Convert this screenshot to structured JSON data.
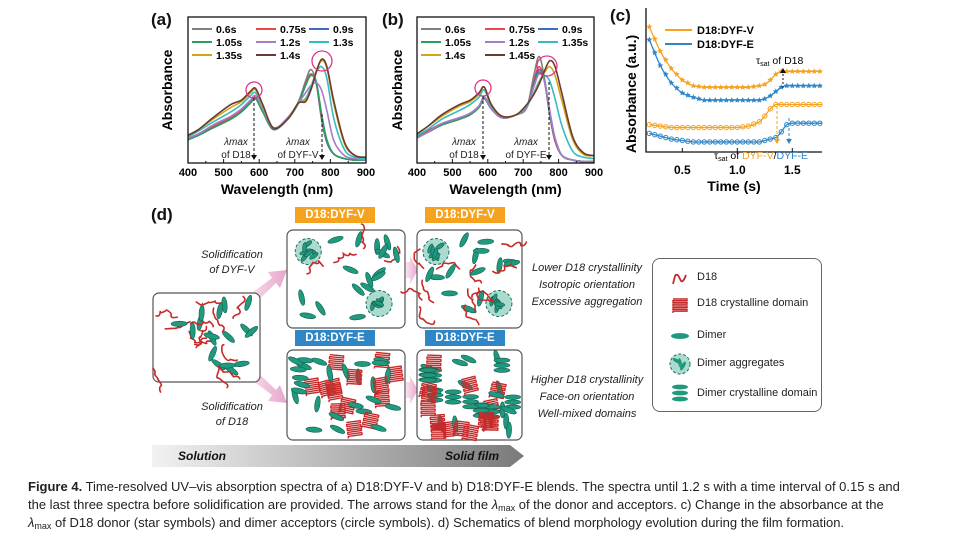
{
  "panels": {
    "a": "(a)",
    "b": "(b)",
    "c": "(c)",
    "d": "(d)"
  },
  "colors": {
    "orange": "#f5a21f",
    "blue": "#2f86c6",
    "teal": "#1f9a7e",
    "red": "#c62a2a",
    "pink": "#e0338a"
  },
  "chart_data": [
    {
      "type": "line",
      "panel": "a",
      "xlabel": "Wavelength (nm)",
      "ylabel": "Absorbance",
      "xlim": [
        400,
        900
      ],
      "ylim": [
        0,
        1
      ],
      "xticks": [
        "400",
        "500",
        "600",
        "700",
        "800",
        "900"
      ],
      "x": [
        400,
        430,
        470,
        520,
        550,
        575,
        590,
        610,
        640,
        680,
        710,
        730,
        745,
        760,
        775,
        790,
        810,
        840,
        870,
        900
      ],
      "series": [
        {
          "name": "0.6s",
          "color": "#808080",
          "values": [
            0.17,
            0.2,
            0.25,
            0.31,
            0.36,
            0.42,
            0.45,
            0.36,
            0.23,
            0.31,
            0.42,
            0.56,
            0.64,
            0.55,
            0.3,
            0.14,
            0.06,
            0.03,
            0.02,
            0.02
          ]
        },
        {
          "name": "0.75s",
          "color": "#e8474b",
          "values": [
            0.17,
            0.2,
            0.25,
            0.31,
            0.36,
            0.42,
            0.45,
            0.36,
            0.23,
            0.31,
            0.41,
            0.54,
            0.61,
            0.55,
            0.32,
            0.15,
            0.06,
            0.03,
            0.02,
            0.02
          ]
        },
        {
          "name": "0.9s",
          "color": "#3a6fc0",
          "values": [
            0.16,
            0.19,
            0.24,
            0.3,
            0.35,
            0.41,
            0.44,
            0.35,
            0.23,
            0.3,
            0.41,
            0.53,
            0.6,
            0.55,
            0.33,
            0.15,
            0.06,
            0.03,
            0.02,
            0.02
          ]
        },
        {
          "name": "1.05s",
          "color": "#2e9e5e",
          "values": [
            0.16,
            0.19,
            0.24,
            0.3,
            0.35,
            0.41,
            0.44,
            0.35,
            0.24,
            0.3,
            0.41,
            0.53,
            0.6,
            0.56,
            0.34,
            0.16,
            0.06,
            0.03,
            0.02,
            0.02
          ]
        },
        {
          "name": "1.2s",
          "color": "#a77bc7",
          "values": [
            0.17,
            0.2,
            0.26,
            0.32,
            0.37,
            0.43,
            0.46,
            0.37,
            0.24,
            0.31,
            0.41,
            0.48,
            0.53,
            0.55,
            0.5,
            0.36,
            0.15,
            0.05,
            0.03,
            0.02
          ]
        },
        {
          "name": "1.3s",
          "color": "#35bcc0",
          "values": [
            0.18,
            0.22,
            0.28,
            0.35,
            0.4,
            0.46,
            0.48,
            0.38,
            0.24,
            0.3,
            0.41,
            0.44,
            0.52,
            0.62,
            0.66,
            0.58,
            0.3,
            0.09,
            0.04,
            0.03
          ]
        },
        {
          "name": "1.35s",
          "color": "#d3a21a",
          "values": [
            0.19,
            0.23,
            0.3,
            0.38,
            0.42,
            0.48,
            0.5,
            0.39,
            0.24,
            0.3,
            0.41,
            0.43,
            0.5,
            0.63,
            0.7,
            0.65,
            0.4,
            0.13,
            0.05,
            0.04
          ]
        },
        {
          "name": "1.4s",
          "color": "#6b3b2f",
          "values": [
            0.19,
            0.23,
            0.31,
            0.4,
            0.43,
            0.49,
            0.51,
            0.4,
            0.24,
            0.3,
            0.41,
            0.42,
            0.5,
            0.62,
            0.71,
            0.66,
            0.42,
            0.14,
            0.05,
            0.04
          ]
        }
      ],
      "annotations": [
        {
          "line1": "λmax",
          "line2": "of D18"
        },
        {
          "line1": "λmax",
          "line2": "of DYF-V"
        }
      ]
    },
    {
      "type": "line",
      "panel": "b",
      "xlabel": "Wavelength (nm)",
      "ylabel": "Absorbance",
      "xlim": [
        400,
        900
      ],
      "ylim": [
        0,
        1
      ],
      "xticks": [
        "400",
        "500",
        "600",
        "700",
        "800",
        "900"
      ],
      "x": [
        400,
        430,
        470,
        520,
        550,
        575,
        590,
        610,
        640,
        680,
        710,
        730,
        745,
        760,
        775,
        790,
        810,
        840,
        870,
        900
      ],
      "series": [
        {
          "name": "0.6s",
          "color": "#808080",
          "values": [
            0.19,
            0.22,
            0.27,
            0.31,
            0.34,
            0.39,
            0.45,
            0.38,
            0.31,
            0.33,
            0.38,
            0.6,
            0.73,
            0.58,
            0.33,
            0.15,
            0.05,
            0.02,
            0.01,
            0.01
          ]
        },
        {
          "name": "0.75s",
          "color": "#e8474b",
          "values": [
            0.19,
            0.22,
            0.27,
            0.31,
            0.34,
            0.39,
            0.45,
            0.38,
            0.31,
            0.33,
            0.38,
            0.56,
            0.66,
            0.56,
            0.33,
            0.15,
            0.05,
            0.02,
            0.01,
            0.01
          ]
        },
        {
          "name": "0.9s",
          "color": "#3a6fc0",
          "values": [
            0.18,
            0.21,
            0.26,
            0.3,
            0.33,
            0.38,
            0.44,
            0.37,
            0.31,
            0.33,
            0.38,
            0.54,
            0.64,
            0.56,
            0.34,
            0.16,
            0.05,
            0.02,
            0.01,
            0.01
          ]
        },
        {
          "name": "1.05s",
          "color": "#2e9e5e",
          "values": [
            0.18,
            0.21,
            0.26,
            0.3,
            0.33,
            0.38,
            0.44,
            0.37,
            0.31,
            0.33,
            0.38,
            0.53,
            0.62,
            0.57,
            0.35,
            0.17,
            0.05,
            0.02,
            0.01,
            0.01
          ]
        },
        {
          "name": "1.2s",
          "color": "#a77bc7",
          "values": [
            0.17,
            0.21,
            0.27,
            0.31,
            0.34,
            0.39,
            0.45,
            0.37,
            0.31,
            0.33,
            0.38,
            0.52,
            0.61,
            0.56,
            0.36,
            0.17,
            0.05,
            0.02,
            0.01,
            0.01
          ]
        },
        {
          "name": "1.35s",
          "color": "#35bcc0",
          "values": [
            0.19,
            0.23,
            0.3,
            0.36,
            0.4,
            0.45,
            0.5,
            0.39,
            0.32,
            0.33,
            0.39,
            0.48,
            0.56,
            0.6,
            0.56,
            0.44,
            0.25,
            0.08,
            0.04,
            0.03
          ]
        },
        {
          "name": "1.4s",
          "color": "#d3a21a",
          "values": [
            0.2,
            0.25,
            0.32,
            0.39,
            0.42,
            0.47,
            0.52,
            0.4,
            0.32,
            0.33,
            0.4,
            0.47,
            0.55,
            0.62,
            0.66,
            0.6,
            0.42,
            0.16,
            0.06,
            0.05
          ]
        },
        {
          "name": "1.45s",
          "color": "#6b3b2f",
          "values": [
            0.2,
            0.25,
            0.33,
            0.4,
            0.43,
            0.48,
            0.52,
            0.4,
            0.32,
            0.33,
            0.4,
            0.47,
            0.54,
            0.63,
            0.7,
            0.66,
            0.47,
            0.18,
            0.07,
            0.05
          ]
        }
      ],
      "annotations": [
        {
          "line1": "λmax",
          "line2": "of D18"
        },
        {
          "line1": "λmax",
          "line2": "of DYF-E"
        }
      ]
    },
    {
      "type": "scatter",
      "panel": "c",
      "xlabel": "Time (s)",
      "ylabel": "Absorbance (a.u.)",
      "xlim": [
        0.17,
        1.77
      ],
      "ylim": [
        0,
        1
      ],
      "xticks": [
        "0.5",
        "1.0",
        "1.5"
      ],
      "xtick_values": [
        0.5,
        1.0,
        1.5
      ],
      "legend": [
        {
          "name": "D18:DYF-V",
          "color": "#f5a21f"
        },
        {
          "name": "D18:DYF-E",
          "color": "#2f86c6"
        }
      ],
      "x": [
        0.2,
        0.3,
        0.4,
        0.5,
        0.6,
        0.7,
        0.8,
        0.9,
        1.0,
        1.1,
        1.2,
        1.25,
        1.3,
        1.35,
        1.4,
        1.45,
        1.5,
        1.6,
        1.7,
        1.77
      ],
      "series": [
        {
          "name": "D18:DYF-V star",
          "marker": "star",
          "color": "#f5a21f",
          "values": [
            0.87,
            0.7,
            0.58,
            0.5,
            0.46,
            0.45,
            0.45,
            0.45,
            0.45,
            0.45,
            0.46,
            0.47,
            0.5,
            0.54,
            0.56,
            0.56,
            0.56,
            0.56,
            0.56,
            0.56
          ]
        },
        {
          "name": "D18:DYF-E star",
          "marker": "star",
          "color": "#2f86c6",
          "values": [
            0.78,
            0.6,
            0.48,
            0.41,
            0.38,
            0.36,
            0.36,
            0.36,
            0.36,
            0.36,
            0.36,
            0.37,
            0.39,
            0.42,
            0.45,
            0.46,
            0.46,
            0.46,
            0.46,
            0.46
          ]
        },
        {
          "name": "D18:DYF-V circle",
          "marker": "circle",
          "color": "#f5a21f",
          "values": [
            0.19,
            0.18,
            0.17,
            0.17,
            0.17,
            0.17,
            0.17,
            0.17,
            0.17,
            0.18,
            0.21,
            0.25,
            0.3,
            0.33,
            0.33,
            0.33,
            0.33,
            0.33,
            0.33,
            0.33
          ]
        },
        {
          "name": "D18:DYF-E circle",
          "marker": "circle",
          "color": "#2f86c6",
          "values": [
            0.13,
            0.11,
            0.09,
            0.08,
            0.07,
            0.07,
            0.07,
            0.07,
            0.07,
            0.07,
            0.07,
            0.08,
            0.09,
            0.1,
            0.14,
            0.19,
            0.2,
            0.2,
            0.2,
            0.2
          ]
        }
      ],
      "annotations": {
        "d18": "of D18",
        "tau": "τ",
        "sat": "sat",
        "acc_of": "of ",
        "dyfv": "DYF-V",
        "slash": "/",
        "dyfe": "DYF-E"
      }
    }
  ],
  "schematic": {
    "badges": [
      "D18:DYF-V",
      "D18:DYF-V",
      "D18:DYF-E",
      "D18:DYF-E"
    ],
    "left_top": [
      "Solidification",
      "of DYF-V"
    ],
    "left_bottom": [
      "Solidification",
      "of D18"
    ],
    "right_top": [
      "Lower D18 crystallinity",
      "Isotropic orientation",
      "Excessive aggregation"
    ],
    "right_bottom": [
      "Higher D18 crystallinity",
      "Face-on orientation",
      "Well-mixed domains"
    ],
    "legend": [
      "D18",
      "D18 crystalline domain",
      "Dimer",
      "Dimer aggregates",
      "Dimer crystalline domain"
    ],
    "progress": {
      "start": "Solution",
      "end": "Solid film"
    }
  },
  "caption": {
    "fig": "Figure 4.",
    "l1": " Time-resolved UV–vis absorption spectra of a) D18:DYF-V and b) D18:DYF-E blends. The spectra until 1.2 s with a time interval of 0.15 s and",
    "l2a": "the last three spectra before solidification are provided. The arrows stand for the ",
    "lam": "λ",
    "max": "max",
    "l2b": " of the donor and acceptors. c) Change in the absorbance at the",
    "l3": " of D18 donor (star symbols) and dimer acceptors (circle symbols). d) Schematics of blend morphology evolution during the film formation."
  }
}
